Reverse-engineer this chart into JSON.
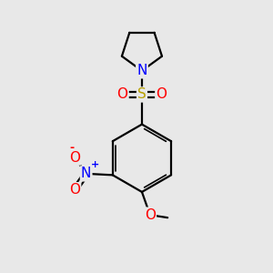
{
  "background_color": "#e8e8e8",
  "bond_color": "#000000",
  "bond_width": 1.6,
  "atom_colors": {
    "N": "#0000ff",
    "S": "#b8a000",
    "O": "#ff0000",
    "C": "#000000"
  },
  "font_size_atom": 11,
  "figsize": [
    3.0,
    3.0
  ],
  "dpi": 100
}
